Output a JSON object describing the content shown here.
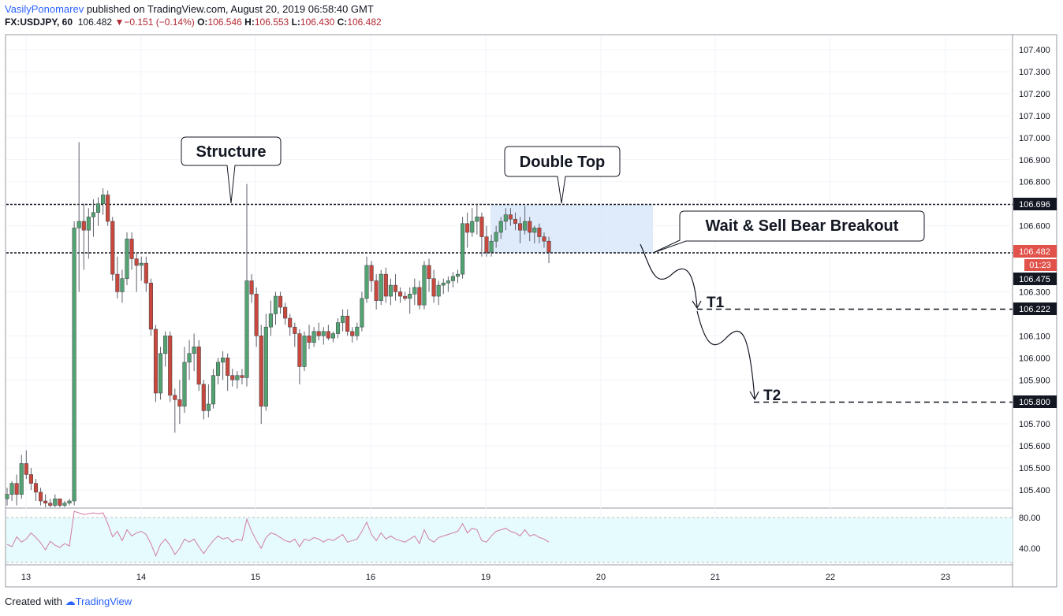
{
  "header": {
    "author": "VasilyPonomarev",
    "published_text": " published on TradingView.com, August 20, 2019 06:58:40 GMT",
    "symbol": "FX:USDJPY, 60",
    "last": "106.482",
    "change": "−0.151 (−0.14%)",
    "o_label": "O:",
    "o_value": "106.546",
    "h_label": "H:",
    "h_value": "106.553",
    "l_label": "L:",
    "l_value": "106.430",
    "c_label": "C:",
    "c_value": "106.482"
  },
  "footer": {
    "created_with": "Created with",
    "brand": "TradingView"
  },
  "colors": {
    "up": "#53a271",
    "down": "#c8483d",
    "rsi_line": "#d17ba8",
    "rsi_band": "#e6fbfd",
    "zone": "#dbe9fb"
  },
  "chart_data": {
    "type": "candlestick",
    "title": "",
    "price_ticks": [
      "107.400",
      "107.300",
      "107.200",
      "107.100",
      "107.000",
      "106.900",
      "106.800",
      "106.600",
      "106.300",
      "106.100",
      "106.000",
      "105.900",
      "105.700",
      "105.600",
      "105.500",
      "105.400"
    ],
    "y_range": [
      105.3,
      107.45
    ],
    "x_ticks": [
      "13",
      "14",
      "15",
      "16",
      "19",
      "20",
      "21",
      "22",
      "23"
    ],
    "price_labels": {
      "resistance": "106.696",
      "last": "106.482",
      "countdown": "01:23",
      "support": "106.475",
      "t1": "106.222",
      "t2": "105.800"
    },
    "levels": {
      "resistance": 106.696,
      "support": 106.475,
      "t1": 106.222,
      "t2": 105.8
    },
    "annotations": {
      "structure": "Structure",
      "double_top": "Double Top",
      "wait_sell": "Wait & Sell Bear Breakout",
      "t1": "T1",
      "t2": "T2"
    },
    "candles": [
      {
        "o": 105.36,
        "h": 105.41,
        "l": 105.33,
        "c": 105.38
      },
      {
        "o": 105.38,
        "h": 105.44,
        "l": 105.35,
        "c": 105.43
      },
      {
        "o": 105.43,
        "h": 105.47,
        "l": 105.33,
        "c": 105.38
      },
      {
        "o": 105.38,
        "h": 105.56,
        "l": 105.36,
        "c": 105.52
      },
      {
        "o": 105.52,
        "h": 105.58,
        "l": 105.45,
        "c": 105.47
      },
      {
        "o": 105.47,
        "h": 105.5,
        "l": 105.4,
        "c": 105.43
      },
      {
        "o": 105.43,
        "h": 105.45,
        "l": 105.35,
        "c": 105.39
      },
      {
        "o": 105.39,
        "h": 105.41,
        "l": 105.33,
        "c": 105.35
      },
      {
        "o": 105.35,
        "h": 105.38,
        "l": 105.32,
        "c": 105.34
      },
      {
        "o": 105.34,
        "h": 105.36,
        "l": 105.31,
        "c": 105.33
      },
      {
        "o": 105.33,
        "h": 105.38,
        "l": 105.31,
        "c": 105.36
      },
      {
        "o": 105.36,
        "h": 105.36,
        "l": 105.32,
        "c": 105.33
      },
      {
        "o": 105.33,
        "h": 105.35,
        "l": 105.3,
        "c": 105.34
      },
      {
        "o": 105.34,
        "h": 105.36,
        "l": 105.33,
        "c": 105.35
      },
      {
        "o": 105.35,
        "h": 106.62,
        "l": 105.33,
        "c": 106.59
      },
      {
        "o": 106.59,
        "h": 106.98,
        "l": 106.3,
        "c": 106.62
      },
      {
        "o": 106.62,
        "h": 106.7,
        "l": 106.4,
        "c": 106.58
      },
      {
        "o": 106.58,
        "h": 106.68,
        "l": 106.45,
        "c": 106.64
      },
      {
        "o": 106.64,
        "h": 106.72,
        "l": 106.55,
        "c": 106.66
      },
      {
        "o": 106.66,
        "h": 106.73,
        "l": 106.6,
        "c": 106.7
      },
      {
        "o": 106.7,
        "h": 106.77,
        "l": 106.65,
        "c": 106.74
      },
      {
        "o": 106.74,
        "h": 106.76,
        "l": 106.6,
        "c": 106.62
      },
      {
        "o": 106.62,
        "h": 106.64,
        "l": 106.35,
        "c": 106.38
      },
      {
        "o": 106.38,
        "h": 106.46,
        "l": 106.27,
        "c": 106.3
      },
      {
        "o": 106.3,
        "h": 106.4,
        "l": 106.25,
        "c": 106.36
      },
      {
        "o": 106.36,
        "h": 106.57,
        "l": 106.33,
        "c": 106.54
      },
      {
        "o": 106.54,
        "h": 106.57,
        "l": 106.4,
        "c": 106.45
      },
      {
        "o": 106.45,
        "h": 106.48,
        "l": 106.3,
        "c": 106.42
      },
      {
        "o": 106.42,
        "h": 106.46,
        "l": 106.35,
        "c": 106.43
      },
      {
        "o": 106.43,
        "h": 106.46,
        "l": 106.3,
        "c": 106.34
      },
      {
        "o": 106.34,
        "h": 106.36,
        "l": 106.1,
        "c": 106.13
      },
      {
        "o": 106.13,
        "h": 106.15,
        "l": 105.8,
        "c": 105.84
      },
      {
        "o": 105.84,
        "h": 106.05,
        "l": 105.81,
        "c": 106.02
      },
      {
        "o": 106.02,
        "h": 106.12,
        "l": 105.96,
        "c": 106.1
      },
      {
        "o": 106.1,
        "h": 106.12,
        "l": 105.8,
        "c": 105.83
      },
      {
        "o": 105.83,
        "h": 105.86,
        "l": 105.66,
        "c": 105.81
      },
      {
        "o": 105.81,
        "h": 105.9,
        "l": 105.7,
        "c": 105.78
      },
      {
        "o": 105.78,
        "h": 106.05,
        "l": 105.75,
        "c": 105.98
      },
      {
        "o": 105.98,
        "h": 106.08,
        "l": 105.9,
        "c": 106.02
      },
      {
        "o": 106.02,
        "h": 106.11,
        "l": 105.94,
        "c": 106.05
      },
      {
        "o": 106.05,
        "h": 106.08,
        "l": 105.85,
        "c": 105.88
      },
      {
        "o": 105.88,
        "h": 105.9,
        "l": 105.72,
        "c": 105.76
      },
      {
        "o": 105.76,
        "h": 105.88,
        "l": 105.73,
        "c": 105.79
      },
      {
        "o": 105.79,
        "h": 105.95,
        "l": 105.77,
        "c": 105.92
      },
      {
        "o": 105.92,
        "h": 106.0,
        "l": 105.88,
        "c": 105.98
      },
      {
        "o": 105.98,
        "h": 106.03,
        "l": 105.9,
        "c": 106.0
      },
      {
        "o": 106.0,
        "h": 106.02,
        "l": 105.85,
        "c": 105.92
      },
      {
        "o": 105.92,
        "h": 105.95,
        "l": 105.87,
        "c": 105.9
      },
      {
        "o": 105.9,
        "h": 105.94,
        "l": 105.86,
        "c": 105.92
      },
      {
        "o": 105.92,
        "h": 105.95,
        "l": 105.88,
        "c": 105.91
      },
      {
        "o": 105.91,
        "h": 106.79,
        "l": 105.87,
        "c": 106.35
      },
      {
        "o": 106.35,
        "h": 106.38,
        "l": 106.25,
        "c": 106.29
      },
      {
        "o": 106.29,
        "h": 106.32,
        "l": 106.05,
        "c": 106.1
      },
      {
        "o": 106.1,
        "h": 106.15,
        "l": 105.7,
        "c": 105.78
      },
      {
        "o": 105.78,
        "h": 106.2,
        "l": 105.76,
        "c": 106.14
      },
      {
        "o": 106.14,
        "h": 106.26,
        "l": 106.1,
        "c": 106.2
      },
      {
        "o": 106.2,
        "h": 106.3,
        "l": 106.15,
        "c": 106.28
      },
      {
        "o": 106.28,
        "h": 106.3,
        "l": 106.2,
        "c": 106.23
      },
      {
        "o": 106.23,
        "h": 106.25,
        "l": 106.15,
        "c": 106.18
      },
      {
        "o": 106.18,
        "h": 106.2,
        "l": 106.1,
        "c": 106.14
      },
      {
        "o": 106.14,
        "h": 106.16,
        "l": 106.05,
        "c": 106.11
      },
      {
        "o": 106.11,
        "h": 106.13,
        "l": 105.88,
        "c": 105.96
      },
      {
        "o": 105.96,
        "h": 106.12,
        "l": 105.94,
        "c": 106.1
      },
      {
        "o": 106.1,
        "h": 106.15,
        "l": 106.04,
        "c": 106.07
      },
      {
        "o": 106.07,
        "h": 106.14,
        "l": 106.05,
        "c": 106.12
      },
      {
        "o": 106.12,
        "h": 106.16,
        "l": 106.08,
        "c": 106.1
      },
      {
        "o": 106.1,
        "h": 106.14,
        "l": 106.06,
        "c": 106.12
      },
      {
        "o": 106.12,
        "h": 106.15,
        "l": 106.08,
        "c": 106.09
      },
      {
        "o": 106.09,
        "h": 106.12,
        "l": 106.07,
        "c": 106.11
      },
      {
        "o": 106.11,
        "h": 106.18,
        "l": 106.09,
        "c": 106.16
      },
      {
        "o": 106.16,
        "h": 106.22,
        "l": 106.12,
        "c": 106.19
      },
      {
        "o": 106.19,
        "h": 106.22,
        "l": 106.1,
        "c": 106.12
      },
      {
        "o": 106.12,
        "h": 106.14,
        "l": 106.07,
        "c": 106.1
      },
      {
        "o": 106.1,
        "h": 106.16,
        "l": 106.08,
        "c": 106.14
      },
      {
        "o": 106.14,
        "h": 106.3,
        "l": 106.12,
        "c": 106.27
      },
      {
        "o": 106.27,
        "h": 106.46,
        "l": 106.25,
        "c": 106.42
      },
      {
        "o": 106.42,
        "h": 106.44,
        "l": 106.3,
        "c": 106.35
      },
      {
        "o": 106.35,
        "h": 106.38,
        "l": 106.22,
        "c": 106.26
      },
      {
        "o": 106.26,
        "h": 106.4,
        "l": 106.24,
        "c": 106.38
      },
      {
        "o": 106.38,
        "h": 106.41,
        "l": 106.25,
        "c": 106.28
      },
      {
        "o": 106.28,
        "h": 106.36,
        "l": 106.24,
        "c": 106.33
      },
      {
        "o": 106.33,
        "h": 106.38,
        "l": 106.26,
        "c": 106.3
      },
      {
        "o": 106.3,
        "h": 106.32,
        "l": 106.25,
        "c": 106.28
      },
      {
        "o": 106.28,
        "h": 106.3,
        "l": 106.26,
        "c": 106.27
      },
      {
        "o": 106.27,
        "h": 106.32,
        "l": 106.2,
        "c": 106.29
      },
      {
        "o": 106.29,
        "h": 106.36,
        "l": 106.24,
        "c": 106.32
      },
      {
        "o": 106.32,
        "h": 106.35,
        "l": 106.22,
        "c": 106.24
      },
      {
        "o": 106.24,
        "h": 106.44,
        "l": 106.22,
        "c": 106.42
      },
      {
        "o": 106.42,
        "h": 106.45,
        "l": 106.3,
        "c": 106.36
      },
      {
        "o": 106.36,
        "h": 106.4,
        "l": 106.25,
        "c": 106.28
      },
      {
        "o": 106.28,
        "h": 106.35,
        "l": 106.24,
        "c": 106.33
      },
      {
        "o": 106.33,
        "h": 106.36,
        "l": 106.29,
        "c": 106.34
      },
      {
        "o": 106.34,
        "h": 106.37,
        "l": 106.3,
        "c": 106.35
      },
      {
        "o": 106.35,
        "h": 106.39,
        "l": 106.32,
        "c": 106.37
      },
      {
        "o": 106.37,
        "h": 106.4,
        "l": 106.34,
        "c": 106.38
      },
      {
        "o": 106.38,
        "h": 106.64,
        "l": 106.36,
        "c": 106.61
      },
      {
        "o": 106.61,
        "h": 106.66,
        "l": 106.5,
        "c": 106.57
      },
      {
        "o": 106.57,
        "h": 106.68,
        "l": 106.55,
        "c": 106.62
      },
      {
        "o": 106.62,
        "h": 106.7,
        "l": 106.56,
        "c": 106.64
      },
      {
        "o": 106.64,
        "h": 106.66,
        "l": 106.46,
        "c": 106.55
      },
      {
        "o": 106.55,
        "h": 106.6,
        "l": 106.46,
        "c": 106.48
      },
      {
        "o": 106.48,
        "h": 106.56,
        "l": 106.46,
        "c": 106.53
      },
      {
        "o": 106.53,
        "h": 106.6,
        "l": 106.5,
        "c": 106.57
      },
      {
        "o": 106.57,
        "h": 106.64,
        "l": 106.54,
        "c": 106.62
      },
      {
        "o": 106.62,
        "h": 106.68,
        "l": 106.58,
        "c": 106.65
      },
      {
        "o": 106.65,
        "h": 106.68,
        "l": 106.6,
        "c": 106.63
      },
      {
        "o": 106.63,
        "h": 106.66,
        "l": 106.58,
        "c": 106.61
      },
      {
        "o": 106.61,
        "h": 106.64,
        "l": 106.52,
        "c": 106.58
      },
      {
        "o": 106.58,
        "h": 106.69,
        "l": 106.56,
        "c": 106.62
      },
      {
        "o": 106.62,
        "h": 106.64,
        "l": 106.53,
        "c": 106.57
      },
      {
        "o": 106.57,
        "h": 106.6,
        "l": 106.52,
        "c": 106.59
      },
      {
        "o": 106.59,
        "h": 106.61,
        "l": 106.52,
        "c": 106.55
      },
      {
        "o": 106.55,
        "h": 106.57,
        "l": 106.5,
        "c": 106.53
      },
      {
        "o": 106.53,
        "h": 106.55,
        "l": 106.43,
        "c": 106.48
      }
    ],
    "rsi": {
      "levels": [
        "80.00",
        "40.00"
      ],
      "range": [
        25,
        90
      ],
      "values": [
        45,
        42,
        55,
        48,
        52,
        60,
        54,
        47,
        38,
        49,
        44,
        41,
        46,
        43,
        88,
        86,
        84,
        85,
        86,
        85,
        86,
        72,
        55,
        62,
        50,
        64,
        56,
        60,
        62,
        58,
        46,
        30,
        45,
        52,
        44,
        32,
        40,
        52,
        48,
        52,
        42,
        33,
        42,
        50,
        56,
        52,
        54,
        48,
        52,
        50,
        78,
        62,
        50,
        40,
        54,
        60,
        58,
        54,
        50,
        48,
        52,
        42,
        52,
        50,
        54,
        52,
        48,
        52,
        50,
        54,
        58,
        48,
        50,
        52,
        62,
        74,
        58,
        50,
        60,
        52,
        56,
        52,
        50,
        48,
        52,
        56,
        46,
        64,
        52,
        48,
        54,
        56,
        58,
        60,
        62,
        72,
        60,
        66,
        64,
        50,
        48,
        56,
        62,
        64,
        66,
        62,
        60,
        56,
        64,
        56,
        58,
        54,
        52,
        48
      ]
    }
  }
}
